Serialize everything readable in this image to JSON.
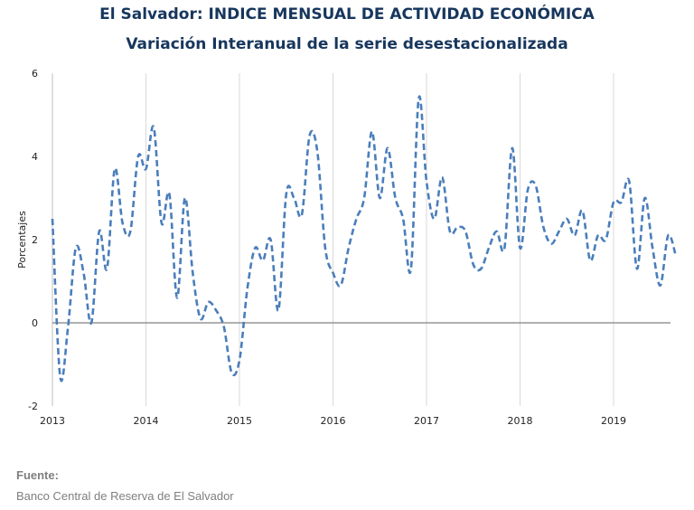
{
  "title": "El Salvador: INDICE MENSUAL DE ACTIVIDAD ECONÓMICA",
  "subtitle": "Variación Interanual de la serie desestacionalizada",
  "source": {
    "label": "Fuente:",
    "text": "Banco Central de Reserva de El Salvador"
  },
  "colors": {
    "series": "#4a7ebb",
    "grid": "#d9d9d9",
    "zero": "#808080"
  },
  "chart_data": {
    "type": "line",
    "title": "El Salvador: INDICE MENSUAL DE ACTIVIDAD ECONÓMICA",
    "subtitle": "Variación Interanual de la serie desestacionalizada",
    "xlabel": "",
    "ylabel": "Porcentajes",
    "ylim": [
      -2,
      6
    ],
    "yticks": [
      "-2",
      "0",
      "2",
      "4",
      "6"
    ],
    "xticks": [
      "2013",
      "2014",
      "2015",
      "2016",
      "2017",
      "2018",
      "2019"
    ],
    "x_start": "2013-01",
    "grid": "vertical-yearly",
    "line_style": "dashed",
    "series": [
      {
        "values": [
          2.5,
          -1.3,
          -0.1,
          1.8,
          1.2,
          0.0,
          2.2,
          1.3,
          3.7,
          2.4,
          2.2,
          4.0,
          3.7,
          4.7,
          2.4,
          3.1,
          0.6,
          3.0,
          1.2,
          0.1,
          0.5,
          0.3,
          -0.1,
          -1.2,
          -0.9,
          0.8,
          1.8,
          1.5,
          2.0,
          0.3,
          3.1,
          3.0,
          2.6,
          4.5,
          4.1,
          1.8,
          1.2,
          0.9,
          1.8,
          2.5,
          3.0,
          4.6,
          3.0,
          4.2,
          3.0,
          2.5,
          1.3,
          5.4,
          3.4,
          2.5,
          3.5,
          2.2,
          2.3,
          2.2,
          1.4,
          1.3,
          1.8,
          2.2,
          1.8,
          4.2,
          1.8,
          3.2,
          3.3,
          2.3,
          1.9,
          2.2,
          2.5,
          2.1,
          2.7,
          1.5,
          2.1,
          2.0,
          2.9,
          2.9,
          3.4,
          1.3,
          3.0,
          1.8,
          0.9,
          2.1,
          1.6
        ]
      }
    ]
  }
}
